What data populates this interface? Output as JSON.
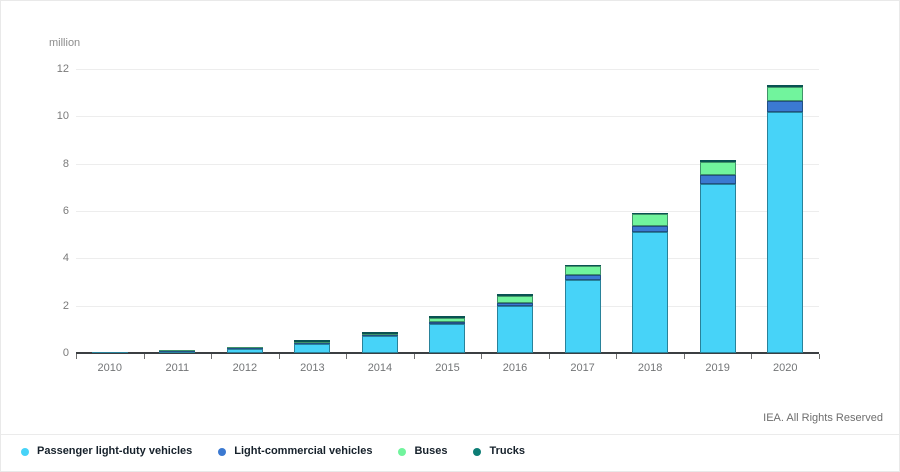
{
  "unit_label": "million",
  "footer": "IEA. All Rights Reserved",
  "colors": {
    "passenger": "#47d3f8",
    "light_commercial": "#3b79d1",
    "buses": "#71f49d",
    "trucks": "#0d7d75",
    "axis": "#3b3f42",
    "gridline": "#ededed"
  },
  "chart_data": {
    "type": "bar",
    "stacked": true,
    "title": "",
    "xlabel": "",
    "ylabel": "million",
    "unit": "million vehicles",
    "ylim": [
      0,
      12
    ],
    "ytick_step": 2,
    "grid": "horizontal",
    "legend_position": "bottom",
    "categories": [
      "2010",
      "2011",
      "2012",
      "2013",
      "2014",
      "2015",
      "2016",
      "2017",
      "2018",
      "2019",
      "2020"
    ],
    "series": [
      {
        "name": "Passenger light-duty vehicles",
        "color": "#47d3f8",
        "values": [
          0.02,
          0.06,
          0.18,
          0.4,
          0.7,
          1.24,
          1.98,
          3.1,
          5.1,
          7.15,
          10.2
        ]
      },
      {
        "name": "Light-commercial vehicles",
        "color": "#3b79d1",
        "values": [
          0.0,
          0.01,
          0.02,
          0.03,
          0.06,
          0.09,
          0.13,
          0.19,
          0.28,
          0.38,
          0.45
        ]
      },
      {
        "name": "Buses",
        "color": "#71f49d",
        "values": [
          0.0,
          0.01,
          0.02,
          0.03,
          0.05,
          0.15,
          0.3,
          0.38,
          0.48,
          0.55,
          0.6
        ]
      },
      {
        "name": "Trucks",
        "color": "#0d7d75",
        "values": [
          0.0,
          0.0,
          0.0,
          0.01,
          0.01,
          0.02,
          0.02,
          0.03,
          0.03,
          0.04,
          0.05
        ]
      }
    ],
    "totals": [
      0.02,
      0.08,
      0.22,
      0.47,
      0.82,
      1.5,
      2.43,
      3.7,
      5.89,
      8.12,
      11.3
    ]
  }
}
